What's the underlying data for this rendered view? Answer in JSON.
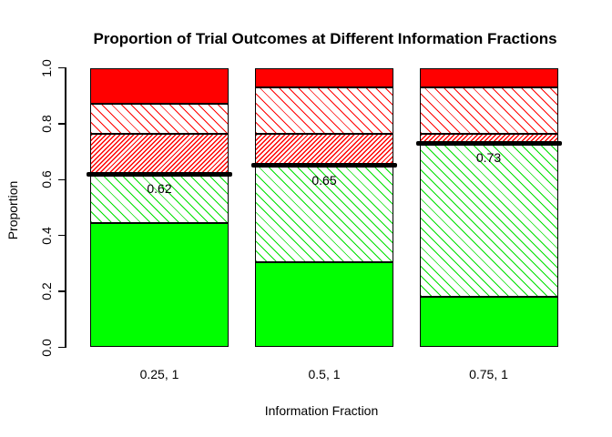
{
  "chart_data": {
    "type": "bar",
    "stacked": true,
    "title": "Proportion of Trial Outcomes at Different Information Fractions",
    "xlabel": "Information Fraction",
    "ylabel": "Proportion",
    "ylim": [
      0,
      1
    ],
    "grid": false,
    "legend": null,
    "background_color": "#ffffff",
    "axis_color": "#000000",
    "yticks": [
      0,
      0.2,
      0.4,
      0.6,
      0.8,
      1.0
    ],
    "ytick_labels": [
      "0.0",
      "0.2",
      "0.4",
      "0.6",
      "0.8",
      "1.0"
    ],
    "categories": [
      "0.25, 1",
      "0.5, 1",
      "0.75, 1"
    ],
    "series": [
      {
        "name": "solid-green-segment",
        "style": "solid",
        "color": "#00FF00",
        "values": [
          0.445,
          0.305,
          0.18
        ]
      },
      {
        "name": "hatched-green-segment",
        "style": "hatch-up",
        "color": "#00E000",
        "values": [
          0.175,
          0.345,
          0.55
        ]
      },
      {
        "name": "dense-hatched-red-segment",
        "style": "hatch-down-dense",
        "color": "#FF0000",
        "values": [
          0.145,
          0.115,
          0.035
        ]
      },
      {
        "name": "hatched-red-segment",
        "style": "hatch-up",
        "color": "#FF0000",
        "values": [
          0.105,
          0.165,
          0.165
        ]
      },
      {
        "name": "solid-red-segment",
        "style": "solid",
        "color": "#FF0000",
        "values": [
          0.13,
          0.07,
          0.07
        ]
      }
    ],
    "annotations": [
      {
        "category_index": 0,
        "value": 0.62,
        "label": "0.62"
      },
      {
        "category_index": 1,
        "value": 0.65,
        "label": "0.65"
      },
      {
        "category_index": 2,
        "value": 0.73,
        "label": "0.73"
      }
    ],
    "annotation_line_color": "#000000"
  }
}
